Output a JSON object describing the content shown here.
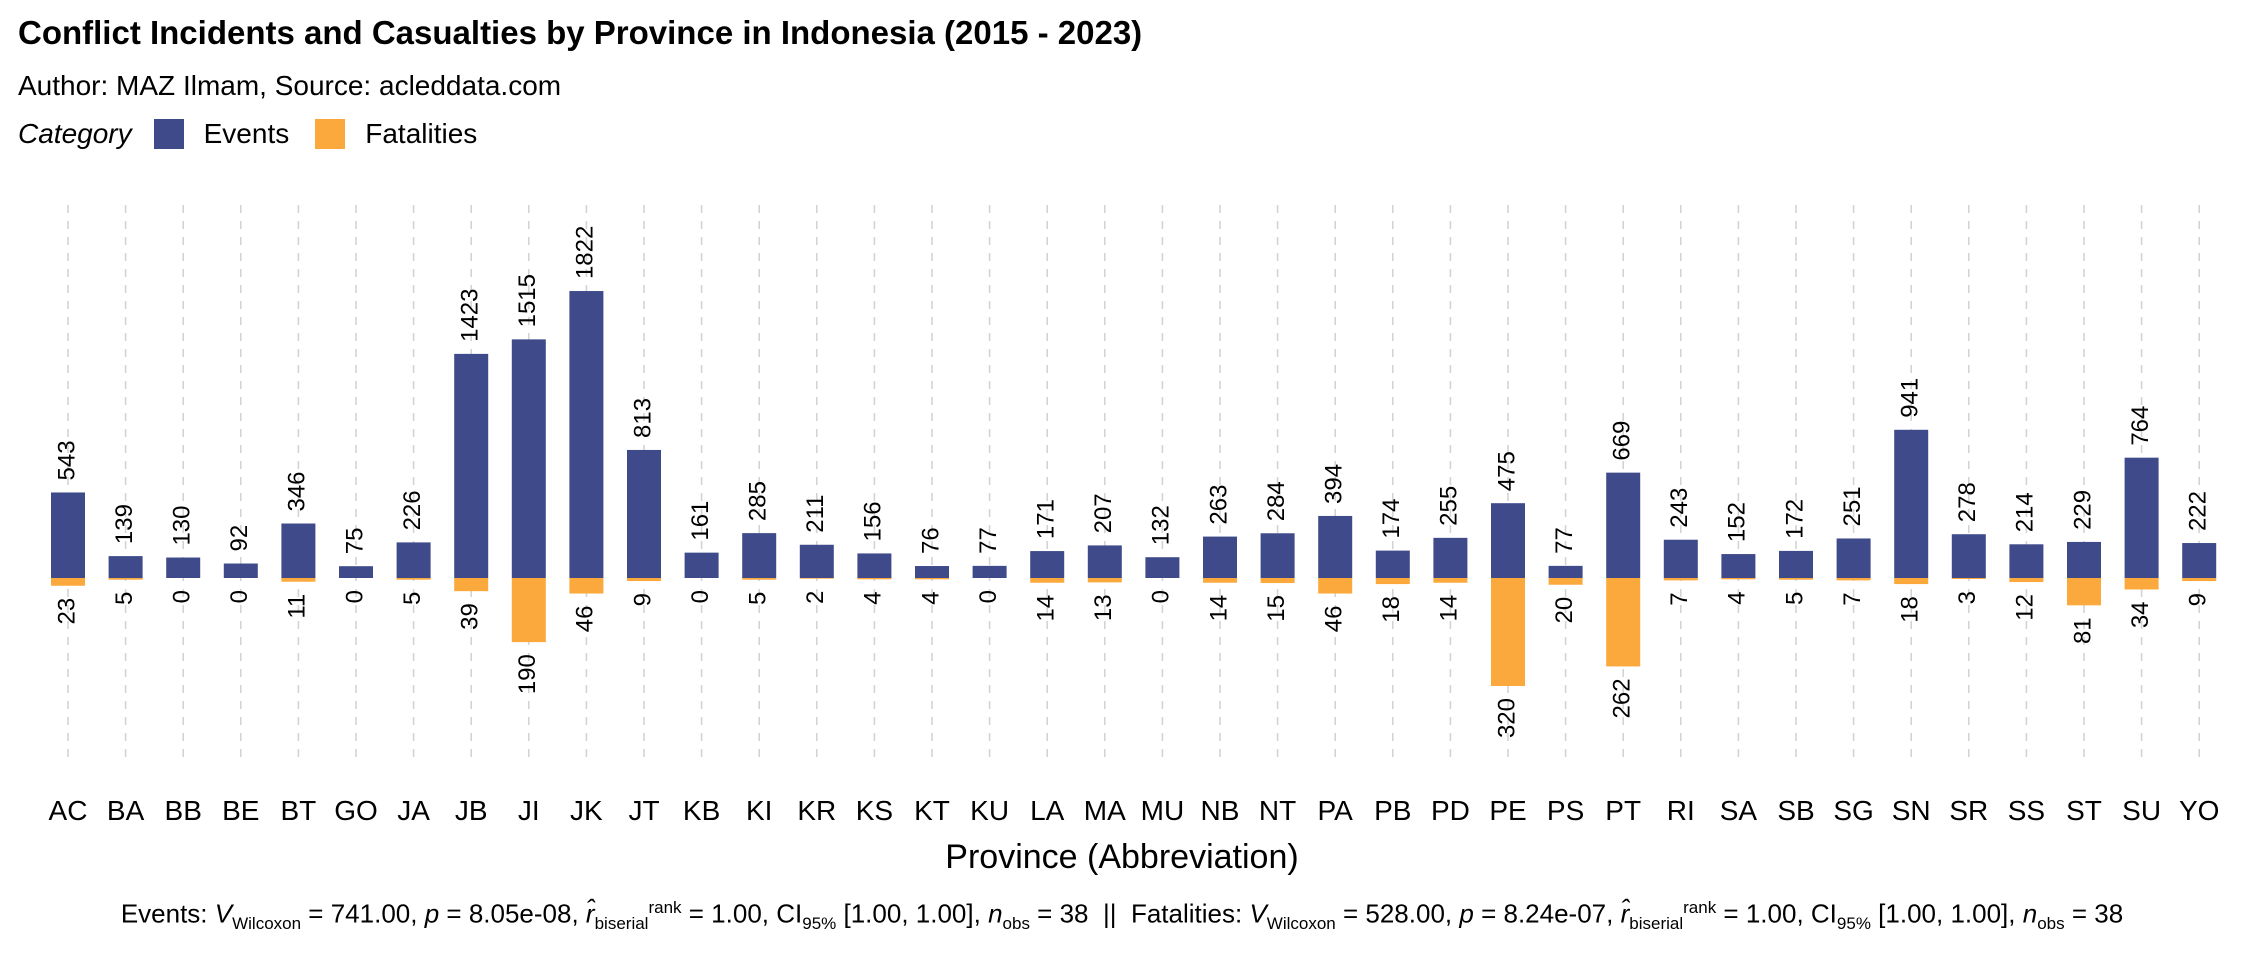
{
  "title": "Conflict Incidents and Casualties by Province in Indonesia (2015 - 2023)",
  "subtitle": "Author: MAZ Ilmam, Source: acleddata.com",
  "caption": {
    "events_label": "Events:",
    "events_v": "741.00",
    "events_p": "8.05e-08",
    "events_r": "1.00",
    "events_ci": "[1.00, 1.00]",
    "events_n": "38",
    "separator": "||",
    "fatalities_label": "Fatalities:",
    "fatalities_v": "528.00",
    "fatalities_p": "8.24e-07",
    "fatalities_r": "1.00",
    "fatalities_ci": "[1.00, 1.00]",
    "fatalities_n": "38"
  },
  "chart_data": {
    "type": "bar",
    "title": "Conflict Incidents and Casualties by Province in Indonesia (2015 - 2023)",
    "xlabel": "Province (Abbreviation)",
    "ylabel": "",
    "legend_title": "Category",
    "legend_position": "top-left",
    "grid": "vertical dashed",
    "categories": [
      "AC",
      "BA",
      "BB",
      "BE",
      "BT",
      "GO",
      "JA",
      "JB",
      "JI",
      "JK",
      "JT",
      "KB",
      "KI",
      "KR",
      "KS",
      "KT",
      "KU",
      "LA",
      "MA",
      "MU",
      "NB",
      "NT",
      "PA",
      "PB",
      "PD",
      "PE",
      "PS",
      "PT",
      "RI",
      "SA",
      "SB",
      "SG",
      "SN",
      "SR",
      "SS",
      "ST",
      "SU",
      "YO"
    ],
    "series": [
      {
        "name": "Events",
        "color": "#3f4a8a",
        "direction": "up",
        "values": [
          543,
          139,
          130,
          92,
          346,
          75,
          226,
          1423,
          1515,
          1822,
          813,
          161,
          285,
          211,
          156,
          76,
          77,
          171,
          207,
          132,
          263,
          284,
          394,
          174,
          255,
          475,
          77,
          669,
          243,
          152,
          172,
          251,
          941,
          278,
          214,
          229,
          764,
          222
        ]
      },
      {
        "name": "Fatalities",
        "color": "#fba83c",
        "direction": "down",
        "values": [
          23,
          5,
          0,
          0,
          11,
          0,
          5,
          39,
          190,
          46,
          9,
          0,
          5,
          2,
          4,
          4,
          0,
          14,
          13,
          0,
          14,
          15,
          46,
          18,
          14,
          320,
          20,
          262,
          7,
          4,
          5,
          7,
          18,
          3,
          12,
          81,
          34,
          9
        ]
      }
    ]
  }
}
